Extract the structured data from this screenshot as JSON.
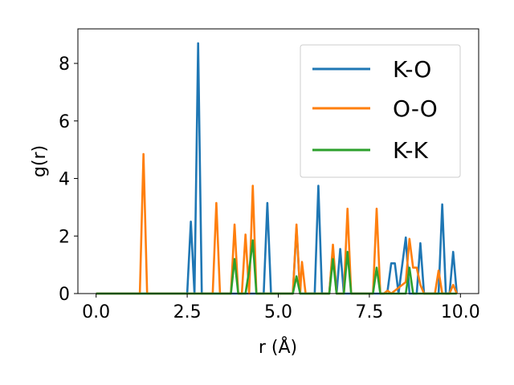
{
  "chart_data": {
    "type": "line",
    "title": "",
    "xlabel": "r (Å)",
    "ylabel": "g(r)",
    "xlim": [
      -0.5,
      10.5
    ],
    "ylim": [
      0,
      9.2
    ],
    "xticks": [
      0.0,
      2.5,
      5.0,
      7.5,
      10.0
    ],
    "xtick_labels": [
      "0.0",
      "2.5",
      "5.0",
      "7.5",
      "10.0"
    ],
    "yticks": [
      0,
      2,
      4,
      6,
      8
    ],
    "ytick_labels": [
      "0",
      "2",
      "4",
      "6",
      "8"
    ],
    "grid": false,
    "legend_position": "top-right",
    "series": [
      {
        "name": "K-O",
        "color": "#1f77b4",
        "points": [
          [
            0,
            0
          ],
          [
            2.5,
            0
          ],
          [
            2.6,
            2.5
          ],
          [
            2.7,
            0
          ],
          [
            2.8,
            8.7
          ],
          [
            2.9,
            0
          ],
          [
            4.6,
            0
          ],
          [
            4.7,
            3.15
          ],
          [
            4.8,
            0
          ],
          [
            5.4,
            0
          ],
          [
            5.5,
            2.3
          ],
          [
            5.6,
            0
          ],
          [
            6.0,
            0
          ],
          [
            6.1,
            3.75
          ],
          [
            6.2,
            0
          ],
          [
            6.4,
            0
          ],
          [
            6.5,
            1.55
          ],
          [
            6.6,
            0
          ],
          [
            6.7,
            1.55
          ],
          [
            6.8,
            0
          ],
          [
            7.9,
            0
          ],
          [
            8.0,
            0.1
          ],
          [
            8.1,
            1.05
          ],
          [
            8.2,
            1.05
          ],
          [
            8.3,
            0
          ],
          [
            8.5,
            1.95
          ],
          [
            8.6,
            0
          ],
          [
            8.8,
            0
          ],
          [
            8.9,
            1.75
          ],
          [
            9.0,
            0
          ],
          [
            9.4,
            0
          ],
          [
            9.5,
            3.1
          ],
          [
            9.6,
            0
          ],
          [
            9.7,
            0
          ],
          [
            9.8,
            1.45
          ],
          [
            9.9,
            0
          ]
        ]
      },
      {
        "name": "O-O",
        "color": "#ff7f0e",
        "points": [
          [
            0,
            0
          ],
          [
            1.2,
            0
          ],
          [
            1.3,
            4.85
          ],
          [
            1.4,
            0
          ],
          [
            3.2,
            0
          ],
          [
            3.3,
            3.15
          ],
          [
            3.4,
            0
          ],
          [
            3.7,
            0
          ],
          [
            3.8,
            2.4
          ],
          [
            3.9,
            0
          ],
          [
            4.0,
            0
          ],
          [
            4.1,
            2.05
          ],
          [
            4.2,
            0
          ],
          [
            4.3,
            3.75
          ],
          [
            4.4,
            0
          ],
          [
            5.4,
            0
          ],
          [
            5.5,
            2.4
          ],
          [
            5.6,
            0
          ],
          [
            5.65,
            1.1
          ],
          [
            5.75,
            0
          ],
          [
            6.4,
            0
          ],
          [
            6.5,
            1.7
          ],
          [
            6.6,
            0
          ],
          [
            6.8,
            0
          ],
          [
            6.9,
            2.95
          ],
          [
            7.0,
            0
          ],
          [
            7.6,
            0
          ],
          [
            7.7,
            2.95
          ],
          [
            7.8,
            0
          ],
          [
            7.9,
            0
          ],
          [
            8.0,
            0.1
          ],
          [
            8.1,
            0
          ],
          [
            8.5,
            0.4
          ],
          [
            8.6,
            1.9
          ],
          [
            8.7,
            0.9
          ],
          [
            8.8,
            0.9
          ],
          [
            8.9,
            0.3
          ],
          [
            9.0,
            0
          ],
          [
            9.3,
            0
          ],
          [
            9.4,
            0.8
          ],
          [
            9.5,
            0
          ],
          [
            9.7,
            0
          ],
          [
            9.8,
            0.3
          ],
          [
            9.9,
            0
          ]
        ]
      },
      {
        "name": "K-K",
        "color": "#2ca02c",
        "points": [
          [
            0,
            0
          ],
          [
            3.7,
            0
          ],
          [
            3.8,
            1.2
          ],
          [
            3.9,
            0
          ],
          [
            4.1,
            0
          ],
          [
            4.2,
            0.8
          ],
          [
            4.3,
            1.85
          ],
          [
            4.4,
            0
          ],
          [
            5.4,
            0
          ],
          [
            5.5,
            0.6
          ],
          [
            5.6,
            0
          ],
          [
            6.4,
            0
          ],
          [
            6.5,
            1.2
          ],
          [
            6.6,
            0
          ],
          [
            6.8,
            0
          ],
          [
            6.9,
            1.45
          ],
          [
            7.0,
            0
          ],
          [
            7.6,
            0
          ],
          [
            7.7,
            0.9
          ],
          [
            7.8,
            0
          ],
          [
            8.5,
            0
          ],
          [
            8.6,
            0.9
          ],
          [
            8.7,
            0
          ],
          [
            9.9,
            0
          ]
        ]
      }
    ]
  }
}
